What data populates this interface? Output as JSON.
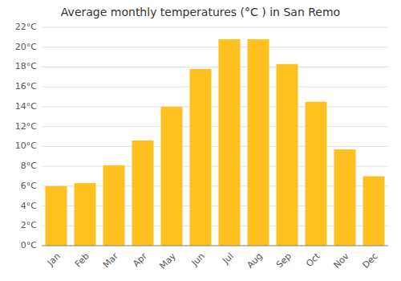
{
  "chart_data": {
    "type": "bar",
    "title": "Average monthly temperatures (°C ) in San Remo",
    "categories": [
      "Jan",
      "Feb",
      "Mar",
      "Apr",
      "May",
      "Jun",
      "Jul",
      "Aug",
      "Sep",
      "Oct",
      "Nov",
      "Dec"
    ],
    "values": [
      6.0,
      6.3,
      8.1,
      10.6,
      14.0,
      17.8,
      20.8,
      20.8,
      18.3,
      14.5,
      9.7,
      7.0
    ],
    "color": "#FFC020",
    "ylim": [
      0,
      22
    ],
    "yticks": [
      {
        "value": 0,
        "label": "0°C"
      },
      {
        "value": 2,
        "label": "2°C"
      },
      {
        "value": 4,
        "label": "4°C"
      },
      {
        "value": 6,
        "label": "6°C"
      },
      {
        "value": 8,
        "label": "8°C"
      },
      {
        "value": 10,
        "label": "10°C"
      },
      {
        "value": 12,
        "label": "12°C"
      },
      {
        "value": 14,
        "label": "14°C"
      },
      {
        "value": 16,
        "label": "16°C"
      },
      {
        "value": 18,
        "label": "18°C"
      },
      {
        "value": 20,
        "label": "20°C"
      },
      {
        "value": 22,
        "label": "22°C"
      }
    ],
    "grid": true
  }
}
